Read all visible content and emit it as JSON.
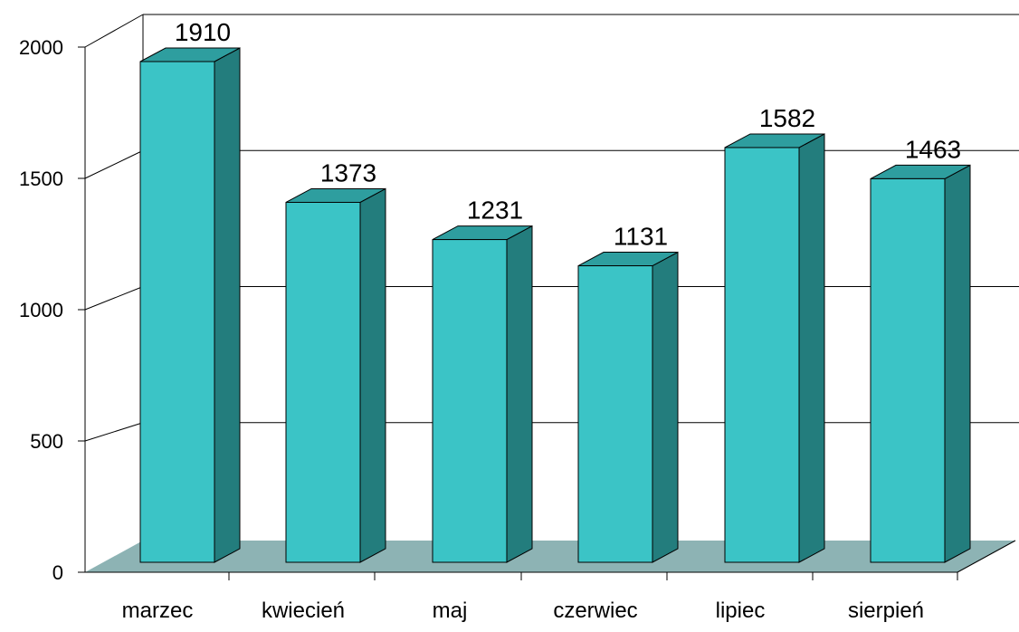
{
  "chart_data": {
    "type": "bar",
    "style": "3d-column",
    "categories": [
      "marzec",
      "kwiecień",
      "maj",
      "czerwiec",
      "lipiec",
      "sierpień"
    ],
    "values": [
      1910,
      1373,
      1231,
      1131,
      1582,
      1463
    ],
    "data_labels": [
      "1910",
      "1373",
      "1231",
      "1131",
      "1582",
      "1463"
    ],
    "yticks": [
      0,
      500,
      1000,
      1500,
      2000
    ],
    "ylim": [
      0,
      2000
    ],
    "grid": true,
    "legend": "none",
    "colors": {
      "bar_front": "#3BC4C6",
      "bar_side": "#237D7D",
      "bar_top": "#2E9E9F",
      "floor": "#8DB3B4",
      "axis": "#000000",
      "gridline": "#000000"
    }
  }
}
